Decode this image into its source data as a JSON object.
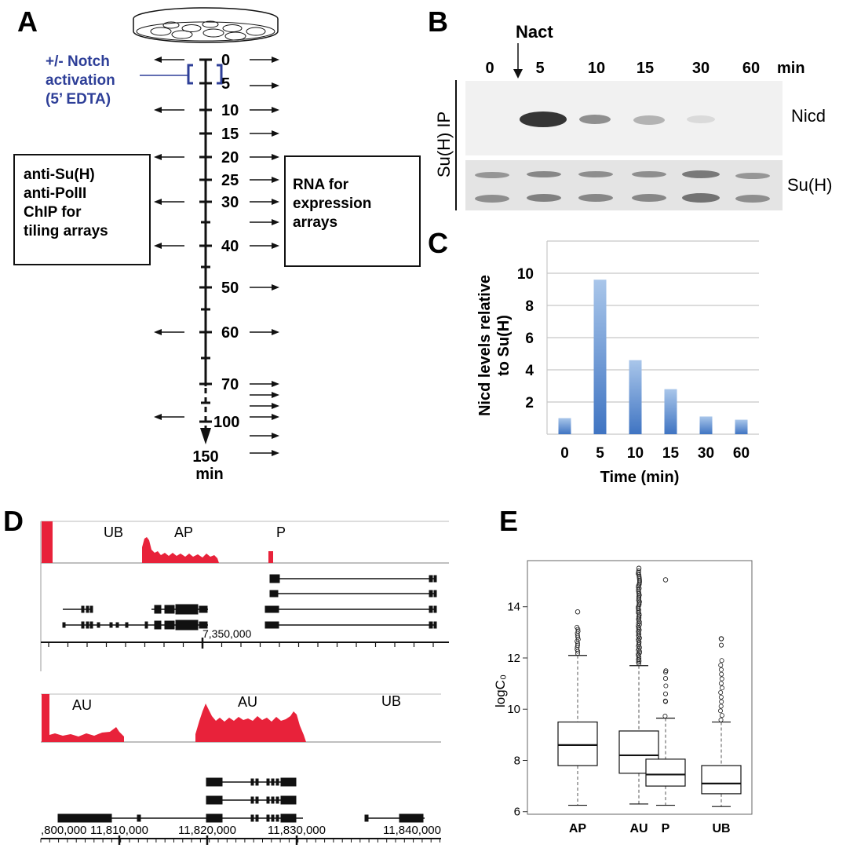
{
  "panelA": {
    "letter": "A",
    "notch_lines": [
      "+/- Notch",
      "activation",
      "(5’ EDTA)"
    ],
    "axis_labels": [
      "0",
      "5",
      "10",
      "15",
      "20",
      "25",
      "30",
      "40",
      "50",
      "60",
      "70",
      "100"
    ],
    "end_label": "150",
    "end_unit": "min",
    "left_box": [
      "anti-Su(H)",
      "anti-PolII",
      "ChIP for",
      "tiling arrays"
    ],
    "right_box": [
      "RNA for",
      "expression",
      "arrays"
    ]
  },
  "panelB": {
    "letter": "B",
    "nact": "Nact",
    "lanes": [
      "0",
      "5",
      "10",
      "15",
      "30",
      "60"
    ],
    "unit": "min",
    "side_label": "Su(H) IP",
    "band_label_top": "Nicd",
    "band_label_bottom": "Su(H)"
  },
  "panelC": {
    "letter": "C",
    "ylabel_lines": [
      "Nicd levels relative",
      "to Su(H)"
    ],
    "yticks": [
      "2",
      "4",
      "6",
      "8",
      "10"
    ],
    "xlabel": "Time (min)"
  },
  "panelD": {
    "letter": "D",
    "top_labels": [
      "UB",
      "AP",
      "P"
    ],
    "top_coord": "7,350,000",
    "bottom_labels": [
      "AU",
      "AU",
      "UB"
    ],
    "bottom_coords": [
      ",800,000",
      "11,810,000",
      "11,820,000",
      "11,830,000",
      "11,840,000"
    ]
  },
  "panelE": {
    "letter": "E",
    "ylabel": "logC₀",
    "yticks": [
      "6",
      "8",
      "10",
      "12",
      "14"
    ],
    "categories": [
      "AP",
      "AU",
      "P",
      "UB"
    ]
  },
  "chart_data": [
    {
      "type": "bar",
      "categories": [
        "0",
        "5",
        "10",
        "15",
        "30",
        "60"
      ],
      "values": [
        1.0,
        9.6,
        4.6,
        2.8,
        1.1,
        0.9
      ],
      "xlabel": "Time (min)",
      "ylabel": "Nicd levels relative to Su(H)",
      "ylim": [
        0,
        12
      ],
      "grid": true
    },
    {
      "type": "box",
      "categories": [
        "AP",
        "AU",
        "P",
        "UB"
      ],
      "boxes": [
        {
          "min": 6.25,
          "q1": 7.8,
          "median": 8.6,
          "q3": 9.5,
          "max": 12.1
        },
        {
          "min": 6.3,
          "q1": 7.5,
          "median": 8.2,
          "q3": 9.15,
          "max": 11.7
        },
        {
          "min": 6.25,
          "q1": 7.0,
          "median": 7.45,
          "q3": 8.05,
          "max": 9.65
        },
        {
          "min": 6.2,
          "q1": 6.7,
          "median": 7.1,
          "q3": 7.8,
          "max": 9.5
        }
      ],
      "ylabel": "logC₀",
      "ylim": [
        5.9,
        15.8
      ]
    }
  ]
}
